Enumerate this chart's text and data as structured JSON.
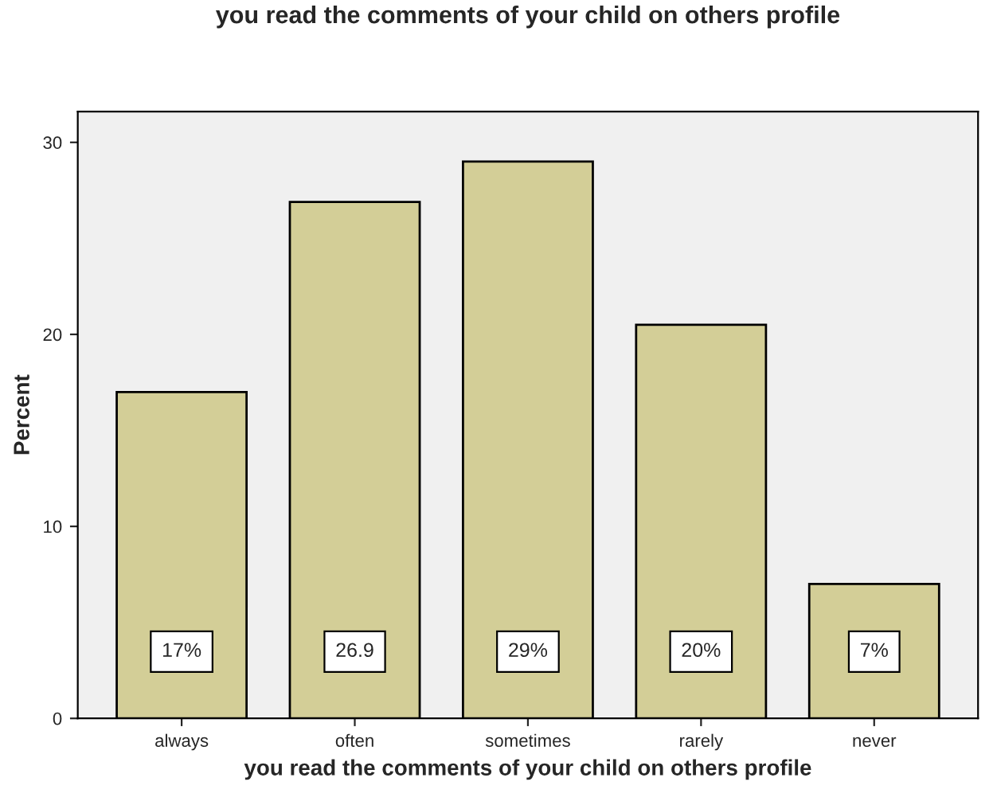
{
  "chart_data": {
    "type": "bar",
    "title": "you read the comments of your child on others profile",
    "xlabel": "you read the comments of your child on others profile",
    "ylabel": "Percent",
    "categories": [
      "always",
      "often",
      "sometimes",
      "rarely",
      "never"
    ],
    "values": [
      17,
      26.9,
      29,
      20.5,
      7
    ],
    "value_labels": [
      "17%",
      "26.9",
      "29%",
      "20%",
      "7%"
    ],
    "color": "#d3ce97",
    "ylim": [
      0,
      31.6
    ],
    "yticks": [
      0,
      10,
      20,
      30
    ],
    "grid": false,
    "legend": false
  }
}
